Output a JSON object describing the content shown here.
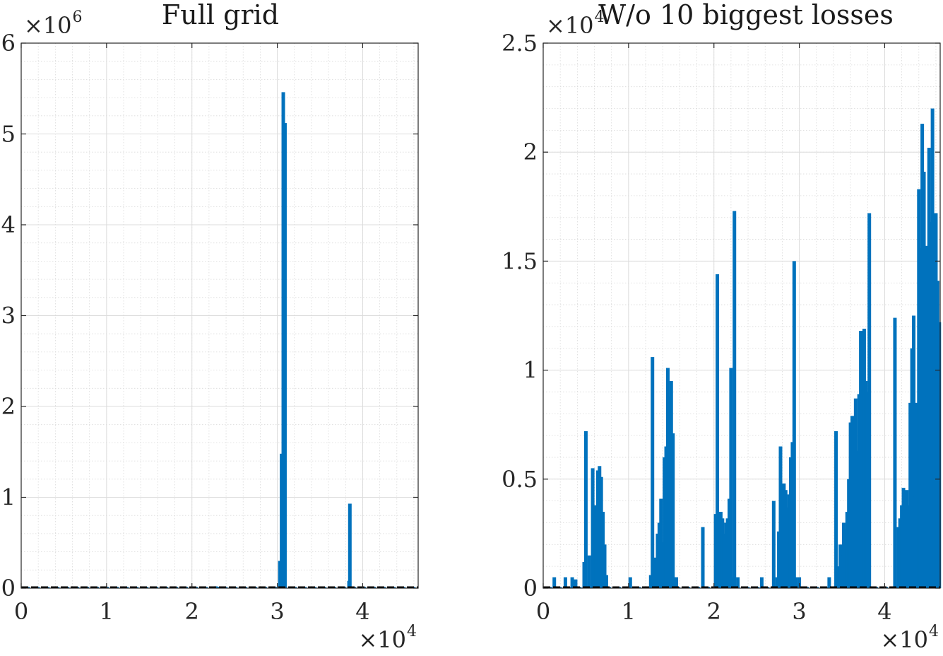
{
  "chart_data": [
    {
      "type": "bar",
      "title": "Full grid",
      "xlim": [
        0,
        46500
      ],
      "ylim": [
        0,
        6000000
      ],
      "xticks": [
        0,
        10000,
        20000,
        30000,
        40000
      ],
      "xtick_labels": [
        "0",
        "1",
        "2",
        "3",
        "4"
      ],
      "yticks": [
        0,
        1000000,
        2000000,
        3000000,
        4000000,
        5000000,
        6000000
      ],
      "ytick_labels": [
        "0",
        "1",
        "2",
        "3",
        "4",
        "5",
        "6"
      ],
      "x_exponent_base": "×10",
      "x_exponent_power": "4",
      "y_exponent_base": "×10",
      "y_exponent_power": "6",
      "grid": true,
      "series_color": "#0072BD",
      "baseline_color": "#000000",
      "x": [
        22800,
        23000,
        30300,
        30500,
        30700,
        30900,
        38400,
        38500,
        45500,
        46000
      ],
      "values": [
        20000,
        15000,
        300000,
        1480000,
        5460000,
        5120000,
        80000,
        930000,
        10000,
        8000
      ]
    },
    {
      "type": "bar",
      "title": "W/o 10 biggest losses",
      "xlim": [
        0,
        46500
      ],
      "ylim": [
        0,
        25000
      ],
      "xticks": [
        0,
        10000,
        20000,
        30000,
        40000
      ],
      "xtick_labels": [
        "0",
        "1",
        "2",
        "3",
        "4"
      ],
      "yticks": [
        0,
        5000,
        10000,
        15000,
        20000,
        25000
      ],
      "ytick_labels": [
        "0",
        "0.5",
        "1",
        "1.5",
        "2",
        "2.5"
      ],
      "x_exponent_base": "×10",
      "x_exponent_power": "4",
      "y_exponent_base": "×10",
      "y_exponent_power": "4",
      "grid": true,
      "series_color": "#0072BD",
      "baseline_color": "#000000",
      "x": [
        1300,
        2600,
        3400,
        3800,
        4800,
        5000,
        5400,
        5800,
        6000,
        6200,
        6400,
        6600,
        6800,
        7000,
        7200,
        7400,
        10200,
        12600,
        12800,
        13000,
        13400,
        13600,
        13800,
        14000,
        14200,
        14400,
        14600,
        14800,
        15000,
        15200,
        15400,
        15600,
        18700,
        20200,
        20400,
        20600,
        20800,
        21000,
        21200,
        21400,
        21600,
        21800,
        22000,
        22200,
        22400,
        22800,
        25600,
        27000,
        27400,
        27600,
        27800,
        28000,
        28200,
        28400,
        28600,
        28800,
        29000,
        29200,
        29400,
        29600,
        30000,
        33500,
        34300,
        34600,
        34800,
        35000,
        35200,
        35400,
        35600,
        35800,
        36000,
        36200,
        36400,
        36600,
        36800,
        37000,
        37200,
        37400,
        37600,
        37800,
        38000,
        38200,
        41200,
        41600,
        41800,
        42000,
        42200,
        42400,
        42600,
        42800,
        43000,
        43200,
        43400,
        43600,
        43800,
        44000,
        44200,
        44400,
        44600,
        44800,
        45000,
        45200,
        45400,
        45600,
        45800,
        46000,
        46200,
        46400
      ],
      "values": [
        500,
        500,
        500,
        400,
        1200,
        7200,
        1500,
        5500,
        2500,
        3800,
        5400,
        5600,
        5100,
        3500,
        2000,
        600,
        500,
        600,
        10600,
        1400,
        2500,
        3000,
        4100,
        2100,
        6000,
        6500,
        10100,
        8800,
        9500,
        7100,
        500,
        500,
        2800,
        3400,
        14400,
        2700,
        3500,
        3200,
        2500,
        3000,
        3200,
        4100,
        10100,
        500,
        17300,
        500,
        500,
        4000,
        500,
        2600,
        6500,
        4200,
        4800,
        4500,
        3700,
        4300,
        6000,
        6700,
        15000,
        500,
        500,
        500,
        7200,
        1000,
        2000,
        1500,
        3000,
        2700,
        3500,
        5000,
        7600,
        7900,
        7200,
        8700,
        6300,
        8900,
        11800,
        10800,
        11900,
        9500,
        9000,
        17200,
        12400,
        2800,
        3200,
        3800,
        4600,
        4200,
        4500,
        3800,
        8500,
        11000,
        12500,
        4200,
        8500,
        18300,
        15600,
        21300,
        19100,
        8800,
        15700,
        20200,
        16800,
        22000,
        14500,
        17200,
        14100,
        12200
      ]
    }
  ]
}
